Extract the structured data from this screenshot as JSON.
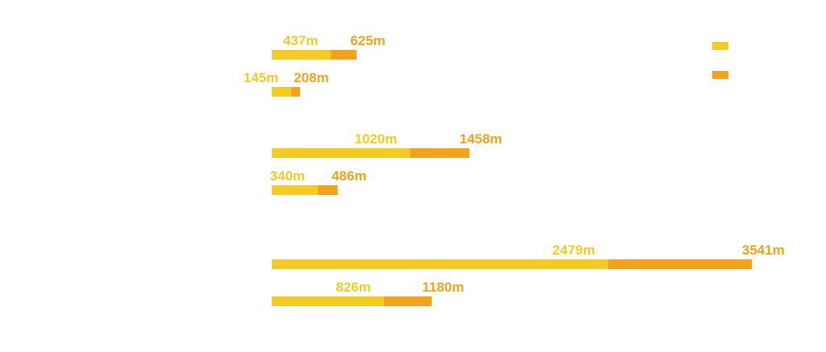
{
  "chart_data": {
    "type": "bar",
    "orientation": "horizontal",
    "stacked": "overlay",
    "colors": {
      "inner": "#F4CB23",
      "outer": "#F2A31B"
    },
    "legend": {
      "placement": "top-right",
      "entries": [
        {
          "name": "",
          "color": "#F4CB23"
        },
        {
          "name": "",
          "color": "#F2A31B"
        }
      ]
    },
    "bars": [
      {
        "inner": 437,
        "outer": 625,
        "inner_label": "437m",
        "outer_label": "625m"
      },
      {
        "inner": 145,
        "outer": 208,
        "inner_label": "145m",
        "outer_label": "208m"
      },
      {
        "inner": 1020,
        "outer": 1458,
        "inner_label": "1020m",
        "outer_label": "1458m"
      },
      {
        "inner": 340,
        "outer": 486,
        "inner_label": "340m",
        "outer_label": "486m"
      },
      {
        "inner": 2479,
        "outer": 3541,
        "inner_label": "2479m",
        "outer_label": "3541m"
      },
      {
        "inner": 826,
        "outer": 1180,
        "inner_label": "826m",
        "outer_label": "1180m"
      }
    ]
  }
}
